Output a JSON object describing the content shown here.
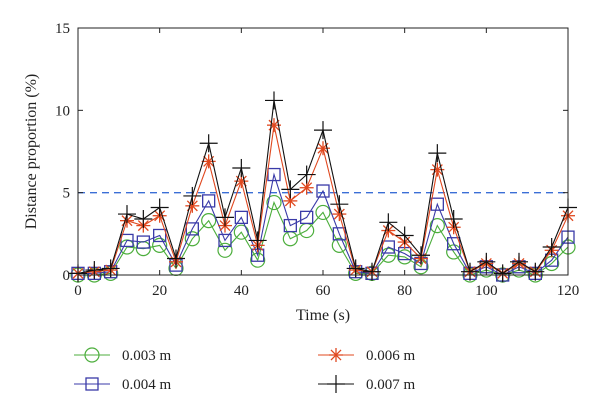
{
  "chart_data": {
    "type": "line",
    "title": "",
    "xlabel": "Time (s)",
    "ylabel": "Distance proportion (%)",
    "xlim": [
      0,
      120
    ],
    "ylim": [
      0,
      15
    ],
    "x_ticks": [
      0,
      20,
      40,
      60,
      80,
      100,
      120
    ],
    "y_ticks": [
      0,
      5,
      10,
      15
    ],
    "x_tick_labels": [
      "0",
      "20",
      "40",
      "60",
      "80",
      "100",
      "120"
    ],
    "y_tick_labels": [
      "0",
      "5",
      "10",
      "15"
    ],
    "grid": false,
    "legend_position": "bottom",
    "reference_line": {
      "y": 5,
      "style": "dashed",
      "color": "#3b6fd6"
    },
    "x": [
      0,
      4,
      8,
      12,
      16,
      20,
      24,
      28,
      32,
      36,
      40,
      44,
      48,
      52,
      56,
      60,
      64,
      68,
      72,
      76,
      80,
      84,
      88,
      92,
      96,
      100,
      104,
      108,
      112,
      116,
      120
    ],
    "series": [
      {
        "name": "0.003 m",
        "marker": "circle",
        "color": "#4cae3c",
        "values": [
          0,
          0,
          0.1,
          1.7,
          1.6,
          1.8,
          0.4,
          2.2,
          3.3,
          1.5,
          2.6,
          0.9,
          4.4,
          2.2,
          2.7,
          3.8,
          1.8,
          0.1,
          0.1,
          1.2,
          1.1,
          0.5,
          3.0,
          1.4,
          0,
          0.3,
          0,
          0.3,
          0,
          0.7,
          1.7
        ]
      },
      {
        "name": "0.004 m",
        "marker": "square",
        "color": "#3a3aa8",
        "values": [
          0.1,
          0.1,
          0.2,
          2.1,
          2.0,
          2.4,
          0.6,
          2.8,
          4.5,
          2.1,
          3.5,
          1.2,
          6.1,
          3.0,
          3.5,
          5.1,
          2.5,
          0.2,
          0.1,
          1.7,
          1.3,
          0.7,
          4.3,
          1.9,
          0.1,
          0.5,
          0,
          0.5,
          0.1,
          0.9,
          2.3
        ]
      },
      {
        "name": "0.006 m",
        "marker": "asterisk",
        "color": "#e0481f",
        "values": [
          0.1,
          0.2,
          0.3,
          3.3,
          3.0,
          3.6,
          0.8,
          4.2,
          6.9,
          3.0,
          5.7,
          1.8,
          9.1,
          4.5,
          5.3,
          7.7,
          3.7,
          0.3,
          0.2,
          2.7,
          2.0,
          1.0,
          6.4,
          2.9,
          0.2,
          0.7,
          0.1,
          0.7,
          0.2,
          1.5,
          3.6
        ]
      },
      {
        "name": "0.007 m",
        "marker": "plus",
        "color": "#111111",
        "values": [
          0.1,
          0.3,
          0.4,
          3.7,
          3.4,
          4.1,
          1.0,
          4.8,
          8.0,
          3.5,
          6.5,
          2.1,
          10.6,
          5.2,
          6.1,
          8.8,
          4.3,
          0.4,
          0.2,
          3.2,
          2.4,
          1.2,
          7.4,
          3.4,
          0.2,
          0.8,
          0.1,
          0.8,
          0.2,
          1.7,
          4.1
        ]
      }
    ]
  }
}
